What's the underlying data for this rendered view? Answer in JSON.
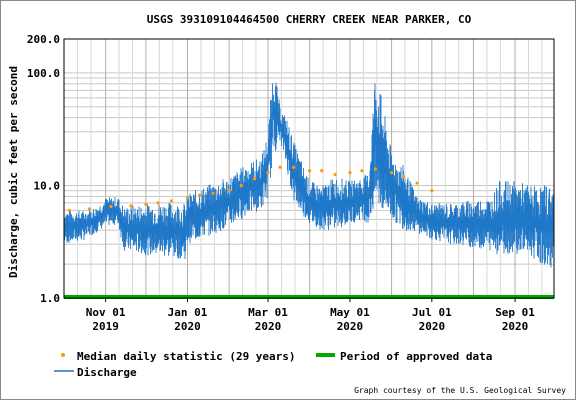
{
  "chart_data": {
    "type": "line",
    "title": "USGS 393109104464500 CHERRY CREEK NEAR PARKER, CO",
    "ylabel": "Discharge, cubic feet per second",
    "y_scale": "log",
    "ylim": [
      1.0,
      200.0
    ],
    "y_ticks": [
      "200.0",
      "100.0",
      "10.0",
      "1.0"
    ],
    "xlim": [
      "2019-10-01",
      "2020-09-30"
    ],
    "x_ticks": [
      {
        "date": "2019-11-01",
        "label1": "Nov 01",
        "label2": "2019"
      },
      {
        "date": "2020-01-01",
        "label1": "Jan 01",
        "label2": "2020"
      },
      {
        "date": "2020-03-01",
        "label1": "Mar 01",
        "label2": "2020"
      },
      {
        "date": "2020-05-01",
        "label1": "May 01",
        "label2": "2020"
      },
      {
        "date": "2020-07-01",
        "label1": "Jul 01",
        "label2": "2020"
      },
      {
        "date": "2020-09-01",
        "label1": "Sep 01",
        "label2": "2020"
      }
    ],
    "grid": true,
    "colors": {
      "discharge": "#1f77c8",
      "median": "#ff9900",
      "approved": "#00aa00"
    },
    "series": [
      {
        "name": "Discharge",
        "kind": "band",
        "x": [
          "2019-10-01",
          "2019-10-15",
          "2019-10-25",
          "2019-11-01",
          "2019-11-10",
          "2019-11-15",
          "2019-12-01",
          "2019-12-15",
          "2019-12-31",
          "2020-01-01",
          "2020-01-15",
          "2020-02-01",
          "2020-02-15",
          "2020-02-25",
          "2020-03-01",
          "2020-03-05",
          "2020-03-10",
          "2020-03-15",
          "2020-03-20",
          "2020-04-01",
          "2020-04-10",
          "2020-04-20",
          "2020-05-01",
          "2020-05-10",
          "2020-05-15",
          "2020-05-20",
          "2020-06-01",
          "2020-06-10",
          "2020-06-20",
          "2020-07-01",
          "2020-07-15",
          "2020-08-01",
          "2020-08-15",
          "2020-08-20",
          "2020-09-01",
          "2020-09-15",
          "2020-09-30"
        ],
        "high": [
          6.2,
          6.0,
          6.5,
          7.8,
          8.0,
          6.5,
          7.0,
          7.2,
          7.0,
          8.5,
          10,
          12,
          16,
          18,
          30,
          125,
          50,
          40,
          25,
          11,
          10,
          12,
          11,
          12,
          13,
          120,
          20,
          15,
          8,
          7,
          7,
          7.5,
          8,
          11,
          11,
          10,
          10.5
        ],
        "low": [
          3.0,
          3.2,
          3.8,
          4.3,
          4.5,
          2.6,
          2.4,
          2.3,
          2.2,
          3.0,
          3.5,
          4.2,
          5.5,
          6.0,
          8.0,
          18,
          25,
          14,
          7,
          4.5,
          4.0,
          4.0,
          4.5,
          5,
          4.5,
          6,
          5,
          4,
          3.8,
          3.3,
          3.0,
          2.8,
          2.6,
          2.4,
          2.5,
          2.2,
          1.7
        ]
      },
      {
        "name": "Median daily statistic (29 years)",
        "kind": "points",
        "x": [
          "2019-10-05",
          "2019-10-20",
          "2019-11-05",
          "2019-11-20",
          "2019-12-01",
          "2019-12-10",
          "2019-12-20",
          "2020-01-01",
          "2020-01-10",
          "2020-01-20",
          "2020-02-01",
          "2020-02-10",
          "2020-02-20",
          "2020-03-01",
          "2020-03-10",
          "2020-03-20",
          "2020-04-01",
          "2020-04-10",
          "2020-04-20",
          "2020-05-01",
          "2020-05-10",
          "2020-05-20",
          "2020-06-01",
          "2020-06-10",
          "2020-06-20",
          "2020-07-01"
        ],
        "values": [
          6.0,
          6.2,
          6.5,
          6.6,
          6.8,
          7.0,
          7.3,
          7.8,
          8.2,
          8.5,
          9.0,
          10.0,
          11.5,
          13,
          14.5,
          14.5,
          13.5,
          13.5,
          12.5,
          13,
          13.5,
          14,
          13,
          12,
          10.5,
          9
        ]
      },
      {
        "name": "Period of approved data",
        "kind": "bar",
        "x": [
          "2019-10-01",
          "2020-09-30"
        ],
        "value": 1.0
      }
    ],
    "legend": {
      "position": "bottom",
      "items": [
        {
          "label": "Median daily statistic (29 years)",
          "marker": "dot",
          "color": "#ff9900"
        },
        {
          "label": "Period of approved data",
          "marker": "bar",
          "color": "#00aa00"
        },
        {
          "label": "Discharge",
          "marker": "line",
          "color": "#1f77c8"
        }
      ]
    },
    "credit": "Graph courtesy of the U.S. Geological Survey"
  }
}
